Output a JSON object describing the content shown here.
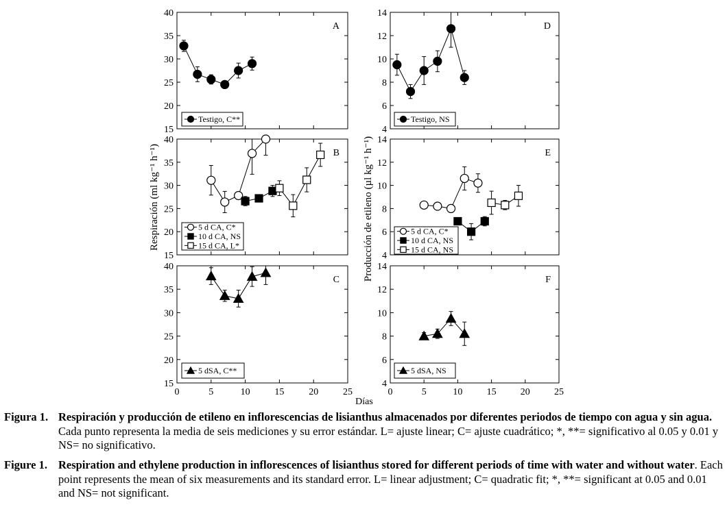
{
  "figure": {
    "x_axis_label": "Días",
    "y_label_left": "Respiración (ml kg⁻¹ h⁻¹)",
    "y_label_right": "Producción de etileno (µl kg⁻¹ h⁻¹)"
  },
  "chart_data": [
    {
      "id": "A",
      "type": "line",
      "panel_letter": "A",
      "ylim": [
        15,
        40
      ],
      "yticks": [
        "15",
        "20",
        "25",
        "30",
        "35",
        "40"
      ],
      "xlim": [
        0,
        25
      ],
      "xticks": [],
      "series": [
        {
          "name": "Testigo, C**",
          "marker": "circle-filled",
          "x": [
            1,
            3,
            5,
            7,
            9,
            11
          ],
          "y": [
            32.8,
            26.7,
            25.6,
            24.5,
            27.5,
            29.0
          ],
          "err": [
            1.2,
            1.6,
            1.0,
            0.4,
            1.6,
            1.4
          ]
        }
      ],
      "legend": [
        "Testigo, C**"
      ]
    },
    {
      "id": "B",
      "type": "line",
      "panel_letter": "B",
      "ylim": [
        15,
        40
      ],
      "yticks": [
        "15",
        "20",
        "25",
        "30",
        "35",
        "40"
      ],
      "xlim": [
        0,
        25
      ],
      "xticks": [],
      "series": [
        {
          "name": "5 d CA, C*",
          "marker": "circle-open",
          "x": [
            5,
            7,
            9,
            11,
            13
          ],
          "y": [
            31.1,
            26.4,
            27.8,
            36.9,
            40.0
          ],
          "err": [
            3.2,
            2.3,
            0.8,
            4.5,
            3.5
          ]
        },
        {
          "name": "10 d CA, NS",
          "marker": "square-filled",
          "x": [
            10,
            12,
            14
          ],
          "y": [
            26.6,
            27.2,
            28.8
          ],
          "err": [
            1.0,
            0.8,
            1.2
          ]
        },
        {
          "name": "15 d CA, L*",
          "marker": "square-open",
          "x": [
            15,
            17,
            19,
            21
          ],
          "y": [
            29.4,
            25.6,
            31.2,
            36.6
          ],
          "err": [
            1.6,
            2.4,
            2.6,
            2.5
          ]
        }
      ],
      "legend": [
        "5 d CA, C*",
        "10 d CA, NS",
        "15 d CA, L*"
      ]
    },
    {
      "id": "C",
      "type": "line",
      "panel_letter": "C",
      "ylim": [
        15,
        40
      ],
      "yticks": [
        "15",
        "20",
        "25",
        "30",
        "35",
        "40"
      ],
      "xlim": [
        0,
        25
      ],
      "xticks": [
        "0",
        "5",
        "10",
        "15",
        "20",
        "25"
      ],
      "series": [
        {
          "name": "5 dSA, C**",
          "marker": "triangle-filled",
          "x": [
            5,
            7,
            9,
            11,
            13
          ],
          "y": [
            37.8,
            33.6,
            33.0,
            37.7,
            38.5
          ],
          "err": [
            1.8,
            1.2,
            1.8,
            2.1,
            2.5
          ]
        }
      ],
      "legend": [
        "5 dSA, C**"
      ]
    },
    {
      "id": "D",
      "type": "line",
      "panel_letter": "D",
      "ylim": [
        4,
        14
      ],
      "yticks": [
        "4",
        "6",
        "8",
        "10",
        "12",
        "14"
      ],
      "xlim": [
        0,
        25
      ],
      "xticks": [],
      "series": [
        {
          "name": "Testigo, NS",
          "marker": "circle-filled",
          "x": [
            1,
            3,
            5,
            7,
            9,
            11
          ],
          "y": [
            9.5,
            7.2,
            9.0,
            9.8,
            12.6,
            8.4
          ],
          "err": [
            0.9,
            0.6,
            1.2,
            0.9,
            1.6,
            0.6
          ]
        }
      ],
      "legend": [
        "Testigo, NS"
      ]
    },
    {
      "id": "E",
      "type": "line",
      "panel_letter": "E",
      "ylim": [
        4,
        14
      ],
      "yticks": [
        "4",
        "6",
        "8",
        "10",
        "12",
        "14"
      ],
      "xlim": [
        0,
        25
      ],
      "xticks": [],
      "series": [
        {
          "name": "5 d CA, C*",
          "marker": "circle-open",
          "x": [
            5,
            7,
            9,
            11,
            13
          ],
          "y": [
            8.3,
            8.2,
            8.0,
            10.6,
            10.2
          ],
          "err": [
            0.3,
            0.2,
            0.2,
            1.0,
            0.8
          ]
        },
        {
          "name": "10 d CA, NS",
          "marker": "square-filled",
          "x": [
            10,
            12,
            14
          ],
          "y": [
            6.9,
            6.0,
            6.9
          ],
          "err": [
            0.3,
            0.7,
            0.4
          ]
        },
        {
          "name": "15 d CA, NS",
          "marker": "square-open",
          "x": [
            15,
            17,
            19
          ],
          "y": [
            8.5,
            8.3,
            9.1
          ],
          "err": [
            1.0,
            0.4,
            0.9
          ]
        }
      ],
      "legend": [
        "5 d CA, C*",
        "10 d CA, NS",
        "15 d CA, NS"
      ]
    },
    {
      "id": "F",
      "type": "line",
      "panel_letter": "F",
      "ylim": [
        4,
        14
      ],
      "yticks": [
        "4",
        "6",
        "8",
        "10",
        "12",
        "14"
      ],
      "xlim": [
        0,
        25
      ],
      "xticks": [
        "0",
        "5",
        "10",
        "15",
        "20",
        "25"
      ],
      "series": [
        {
          "name": "5 dSA, NS",
          "marker": "triangle-filled",
          "x": [
            5,
            7,
            9,
            11
          ],
          "y": [
            8.0,
            8.2,
            9.5,
            8.2
          ],
          "err": [
            0.3,
            0.4,
            0.6,
            1.0
          ]
        }
      ],
      "legend": [
        "5 dSA, NS"
      ]
    }
  ],
  "captions": {
    "es": {
      "label": "Figura 1.",
      "bold": "Respiración y producción de etileno en inflorescencias de lisianthus almacenados por diferentes periodos de tiempo con agua y sin agua.",
      "normal": " Cada punto representa la media de seis mediciones y su error estándar. L= ajuste linear; C= ajuste cuadrático; *, **= significativo al 0.05 y 0.01 y NS= no significativo."
    },
    "en": {
      "label": "Figure 1.",
      "bold": "Respiration and ethylene production in inflorescences of lisianthus stored for different periods of time with water and without water",
      "normal": ". Each point represents the mean of six measurements and its standard error. L= linear adjustment; C= quadratic fit; *, **= significant at 0.05 and 0.01 and NS= not significant."
    }
  }
}
